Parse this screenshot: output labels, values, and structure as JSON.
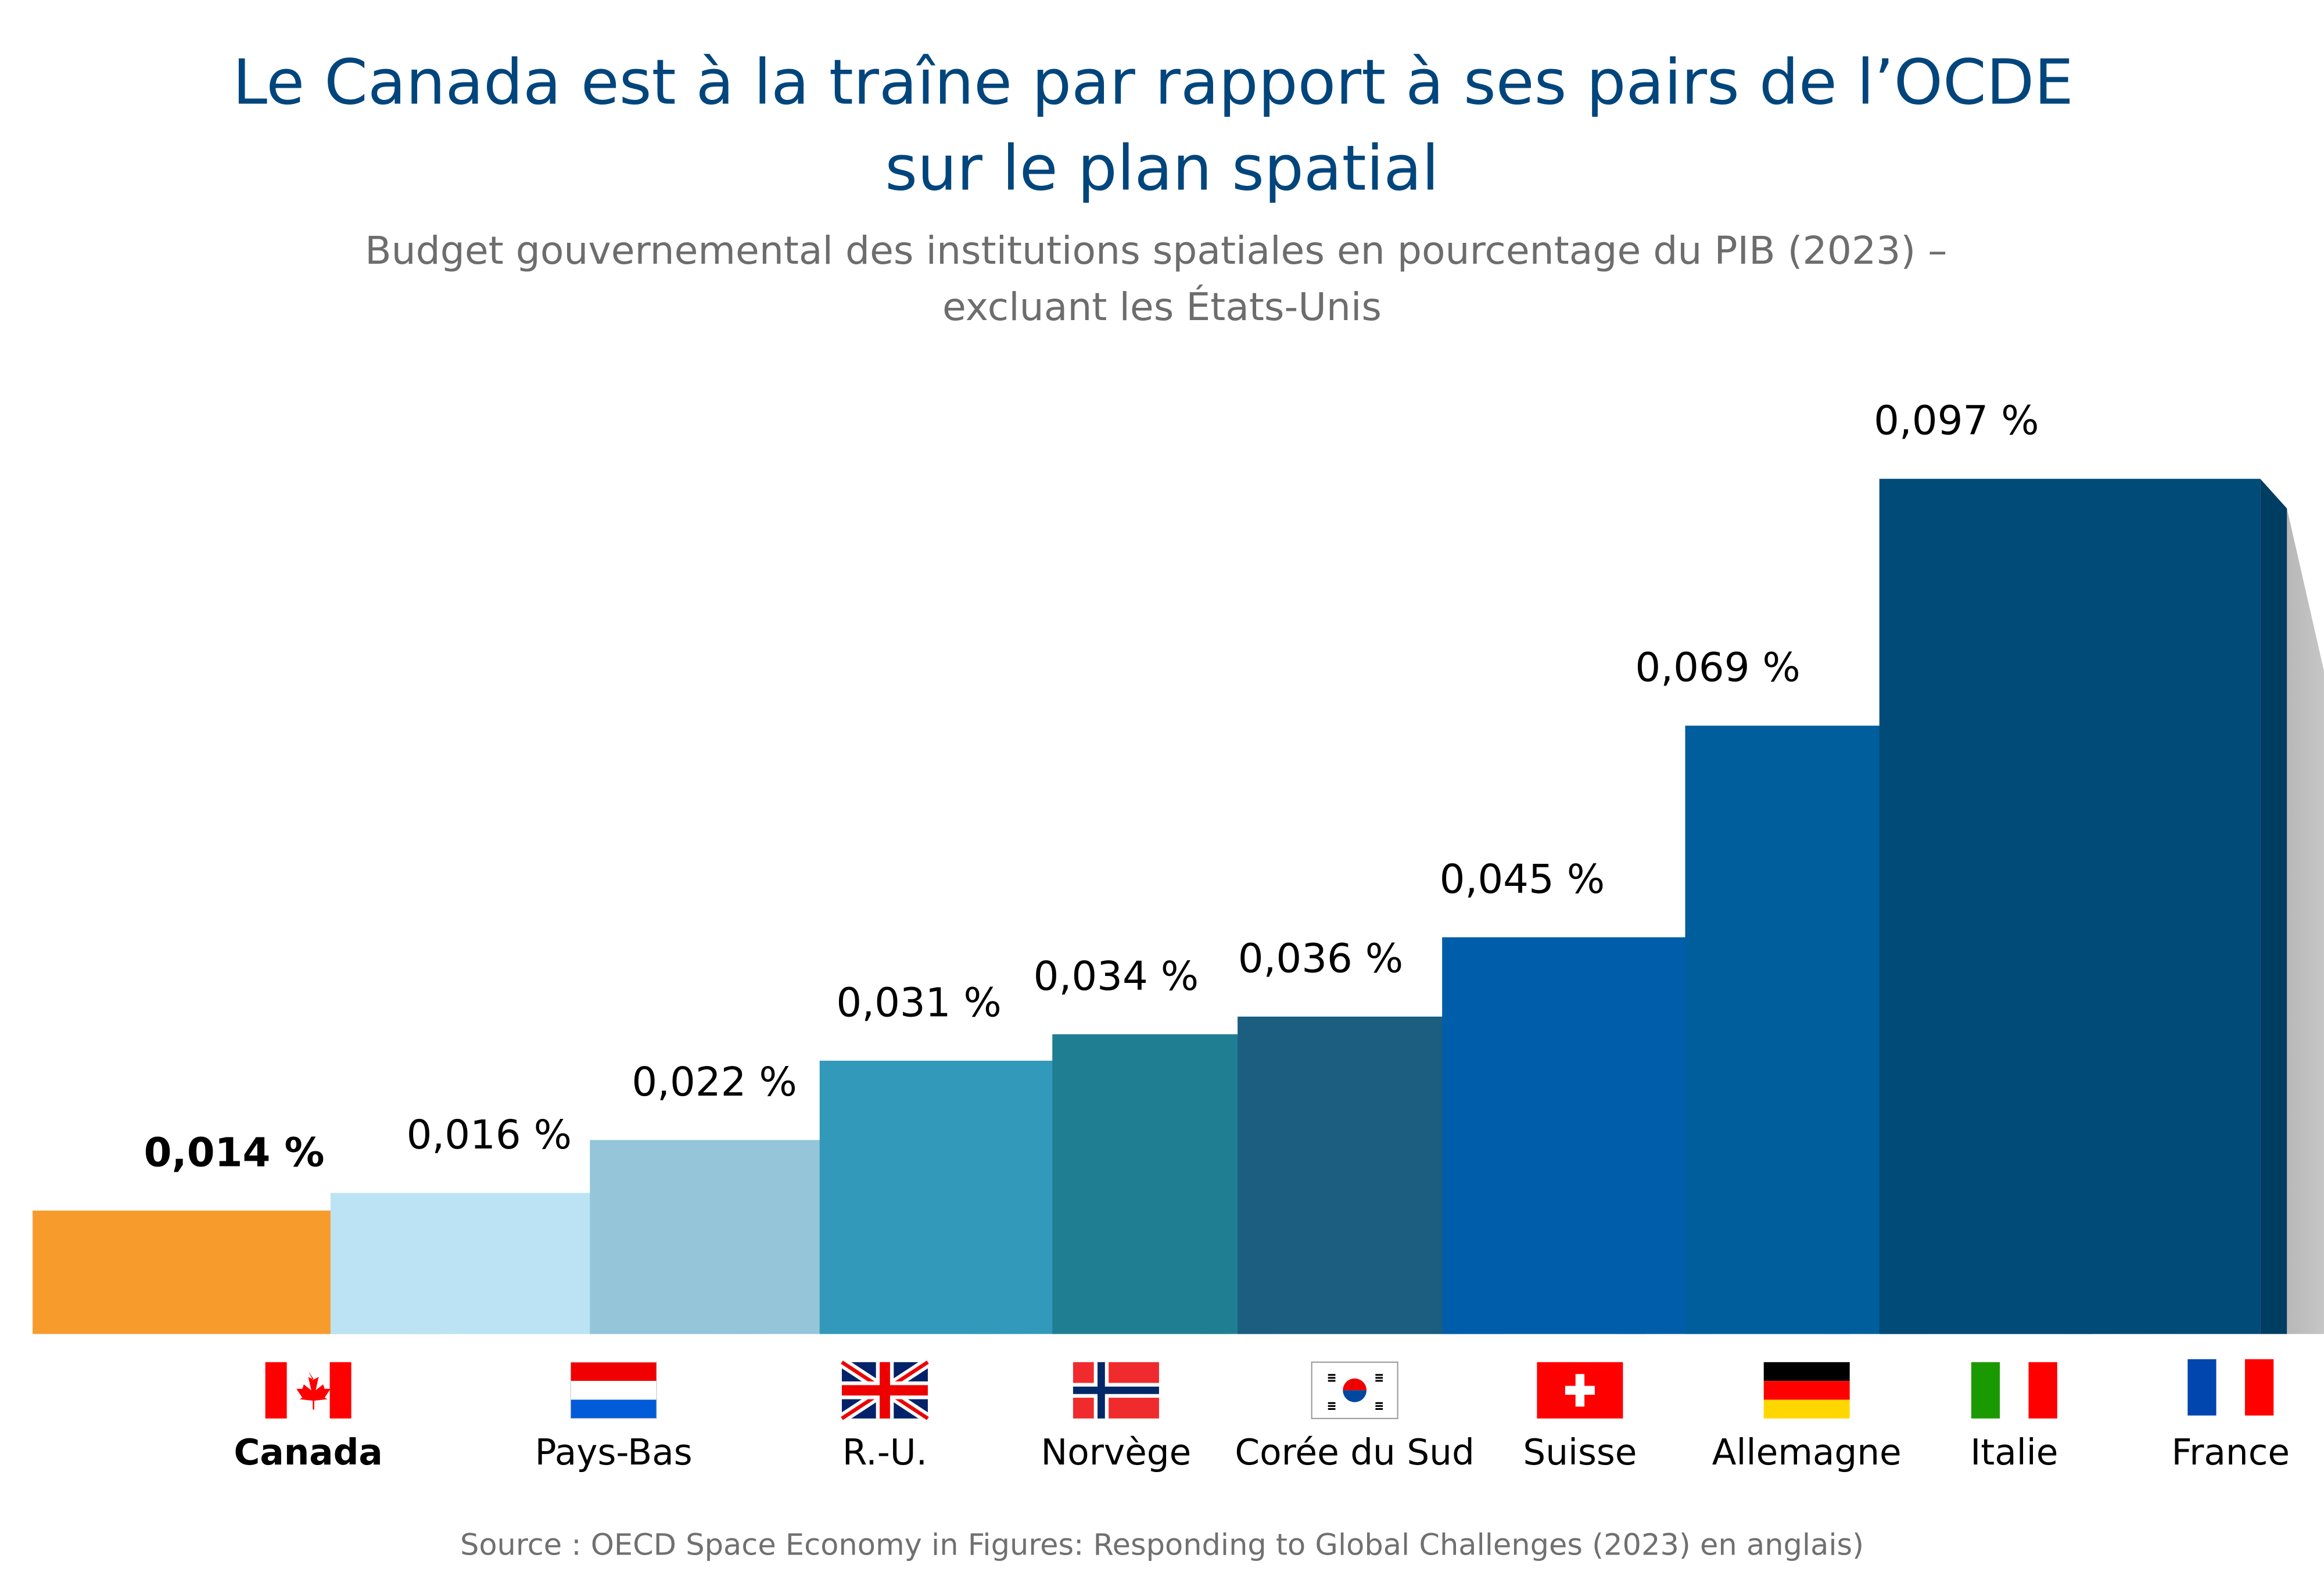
{
  "chart_data": {
    "type": "bar",
    "title_lines": [
      "Le Canada est à la traîne par rapport à ses pairs de l’OCDE",
      "sur le plan spatial"
    ],
    "subtitle_lines": [
      "Budget gouvernemental des institutions spatiales en pourcentage du PIB (2023) –",
      "excluant les États-Unis"
    ],
    "categories": [
      "Canada",
      "Pays-Bas",
      "R.-U.",
      "Norvège",
      "Corée du Sud",
      "Suisse",
      "Allemagne",
      "Italie",
      "France"
    ],
    "values": [
      0.014,
      0.016,
      0.022,
      0.031,
      0.034,
      0.036,
      0.045,
      0.069,
      0.097
    ],
    "value_labels": [
      "0,014 %",
      "0,016 %",
      "0,022 %",
      "0,031 %",
      "0,034 %",
      "0,036 %",
      "0,045 %",
      "0,069 %",
      "0,097 %"
    ],
    "unit": "% du PIB",
    "highlight": "Canada",
    "flags": [
      "canada-flag",
      "netherlands-flag",
      "uk-flag",
      "norway-flag",
      "south-korea-flag",
      "switzerland-flag",
      "germany-flag",
      "italy-flag",
      "france-flag"
    ],
    "colors": {
      "front": [
        "#F79C2C",
        "#BBE3F4",
        "#94C5D8",
        "#3399BA",
        "#207E93",
        "#1B5E80",
        "#005DA9",
        "#005E9C",
        "#004B78"
      ],
      "side": [
        "#CD6A00",
        "#92BCD0",
        "#6AA0B1",
        "#2487A8",
        "#15707F",
        "#0E4D66",
        "#00508F",
        "#00345E",
        "#003D62"
      ],
      "title": "#00457C",
      "subtitle": "#6D6D6D"
    },
    "xlabel": "",
    "ylabel": "",
    "ylim": [
      0,
      0.1
    ],
    "grid": false,
    "legend": "none",
    "source": "Source : OECD Space Economy in Figures: Responding to Global Challenges (2023) en anglais)"
  }
}
